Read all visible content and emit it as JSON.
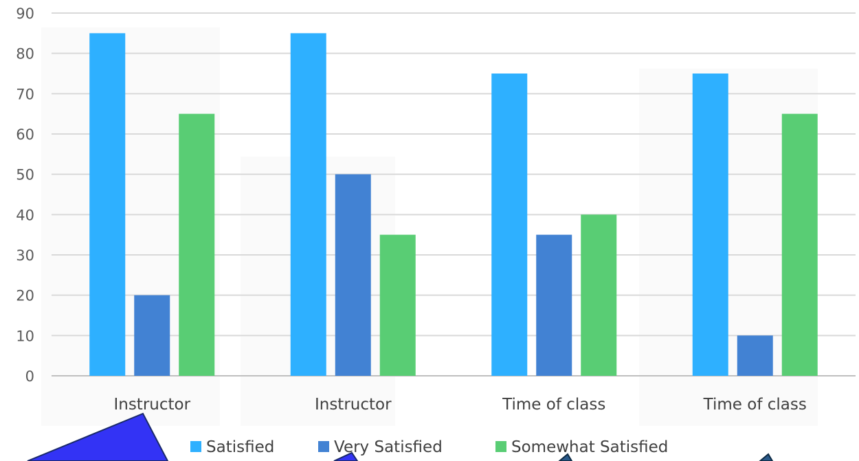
{
  "chart_data": {
    "type": "bar",
    "categories": [
      "Instructor",
      "Instructor",
      "Time of class",
      "Time of class"
    ],
    "series": [
      {
        "name": "Satisfied",
        "color": "#2EB0FF",
        "values": [
          85,
          85,
          75,
          75
        ]
      },
      {
        "name": "Very Satisfied",
        "color": "#4282D3",
        "values": [
          20,
          50,
          35,
          10
        ]
      },
      {
        "name": "Somewhat Satisfied",
        "color": "#59CD74",
        "values": [
          65,
          35,
          40,
          65
        ]
      }
    ],
    "title": "",
    "xlabel": "",
    "ylabel": "",
    "ylim": [
      0,
      90
    ],
    "yticks": [
      0,
      10,
      20,
      30,
      40,
      50,
      60,
      70,
      80,
      90
    ],
    "grid": true,
    "legend_position": "bottom"
  }
}
